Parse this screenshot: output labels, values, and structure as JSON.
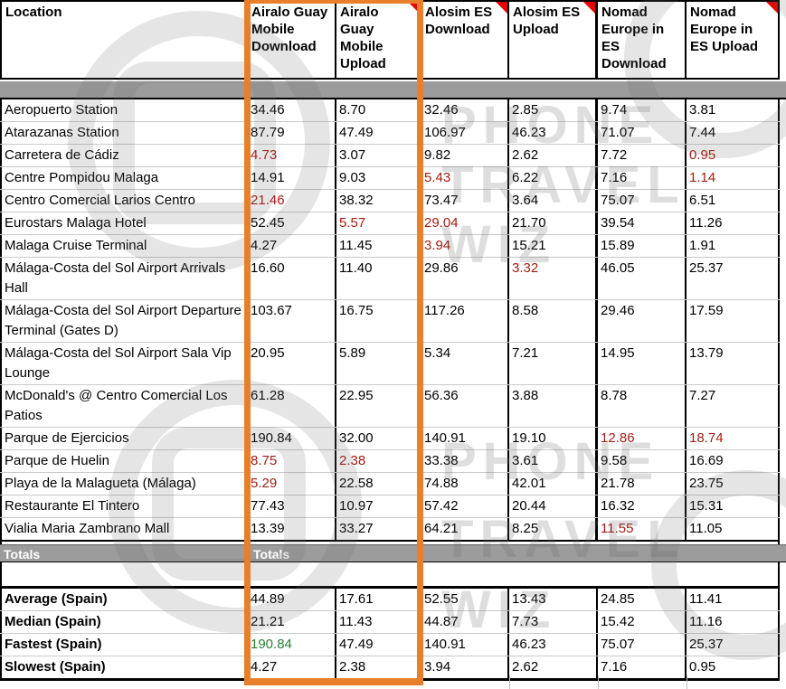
{
  "table": {
    "columns": [
      {
        "label": "Location",
        "comment": false
      },
      {
        "label": "Airalo Guay Mobile Download",
        "comment": false
      },
      {
        "label": "Airalo Guay Mobile Upload",
        "comment": true
      },
      {
        "label": "Alosim ES Download",
        "comment": true
      },
      {
        "label": "Alosim ES Upload",
        "comment": true
      },
      {
        "label": "Nomad Europe in ES Download",
        "comment": false
      },
      {
        "label": "Nomad Europe in ES Upload",
        "comment": true
      }
    ],
    "rows": [
      {
        "location": "Aeropuerto Station",
        "tall": false,
        "cells": [
          {
            "v": "34.46",
            "s": "g"
          },
          {
            "v": "8.70",
            "s": "g"
          },
          {
            "v": "32.46",
            "s": ""
          },
          {
            "v": "2.85",
            "s": ""
          },
          {
            "v": "9.74",
            "s": ""
          },
          {
            "v": "3.81",
            "s": ""
          }
        ]
      },
      {
        "location": "Atarazanas Station",
        "tall": false,
        "cells": [
          {
            "v": "87.79",
            "s": ""
          },
          {
            "v": "47.49",
            "s": ""
          },
          {
            "v": "106.97",
            "s": ""
          },
          {
            "v": "46.23",
            "s": ""
          },
          {
            "v": "71.07",
            "s": ""
          },
          {
            "v": "7.44",
            "s": ""
          }
        ]
      },
      {
        "location": "Carretera de Cádiz",
        "tall": false,
        "cells": [
          {
            "v": "4.73",
            "s": "p"
          },
          {
            "v": "3.07",
            "s": ""
          },
          {
            "v": "9.82",
            "s": ""
          },
          {
            "v": "2.62",
            "s": ""
          },
          {
            "v": "7.72",
            "s": ""
          },
          {
            "v": "0.95",
            "s": "p"
          }
        ]
      },
      {
        "location": "Centre Pompidou Malaga",
        "tall": false,
        "cells": [
          {
            "v": "14.91",
            "s": ""
          },
          {
            "v": "9.03",
            "s": ""
          },
          {
            "v": "5.43",
            "s": "p"
          },
          {
            "v": "6.22",
            "s": ""
          },
          {
            "v": "7.16",
            "s": ""
          },
          {
            "v": "1.14",
            "s": "p"
          }
        ]
      },
      {
        "location": "Centro Comercial Larios Centro",
        "tall": false,
        "cells": [
          {
            "v": "21.46",
            "s": "p"
          },
          {
            "v": "38.32",
            "s": ""
          },
          {
            "v": "73.47",
            "s": ""
          },
          {
            "v": "3.64",
            "s": ""
          },
          {
            "v": "75.07",
            "s": ""
          },
          {
            "v": "6.51",
            "s": ""
          }
        ]
      },
      {
        "location": "Eurostars Malaga Hotel",
        "tall": false,
        "cells": [
          {
            "v": "52.45",
            "s": ""
          },
          {
            "v": "5.57",
            "s": "p"
          },
          {
            "v": "29.04",
            "s": "p"
          },
          {
            "v": "21.70",
            "s": ""
          },
          {
            "v": "39.54",
            "s": ""
          },
          {
            "v": "11.26",
            "s": ""
          }
        ]
      },
      {
        "location": "Malaga Cruise Terminal",
        "tall": false,
        "cells": [
          {
            "v": "4.27",
            "s": ""
          },
          {
            "v": "11.45",
            "s": ""
          },
          {
            "v": "3.94",
            "s": "p"
          },
          {
            "v": "15.21",
            "s": "g"
          },
          {
            "v": "15.89",
            "s": "g"
          },
          {
            "v": "1.91",
            "s": ""
          }
        ]
      },
      {
        "location": "Málaga-Costa del Sol Airport Arrivals Hall",
        "tall": true,
        "cells": [
          {
            "v": "16.60",
            "s": ""
          },
          {
            "v": "11.40",
            "s": ""
          },
          {
            "v": "29.86",
            "s": ""
          },
          {
            "v": "3.32",
            "s": "p"
          },
          {
            "v": "46.05",
            "s": "g"
          },
          {
            "v": "25.37",
            "s": "g"
          }
        ]
      },
      {
        "location": "Málaga-Costa del Sol Airport Departure Terminal (Gates D)",
        "tall": true,
        "cells": [
          {
            "v": "103.67",
            "s": ""
          },
          {
            "v": "16.75",
            "s": ""
          },
          {
            "v": "117.26",
            "s": ""
          },
          {
            "v": "8.58",
            "s": ""
          },
          {
            "v": "29.46",
            "s": ""
          },
          {
            "v": "17.59",
            "s": "g"
          }
        ]
      },
      {
        "location": "Málaga-Costa del Sol Airport Sala Vip Lounge",
        "tall": true,
        "cells": [
          {
            "v": "20.95",
            "s": ""
          },
          {
            "v": "5.89",
            "s": ""
          },
          {
            "v": "5.34",
            "s": ""
          },
          {
            "v": "7.21",
            "s": ""
          },
          {
            "v": "14.95",
            "s": ""
          },
          {
            "v": "13.79",
            "s": ""
          }
        ]
      },
      {
        "location": "McDonald's @ Centro Comercial Los Patios",
        "tall": true,
        "cells": [
          {
            "v": "61.28",
            "s": ""
          },
          {
            "v": "22.95",
            "s": "g"
          },
          {
            "v": "56.36",
            "s": ""
          },
          {
            "v": "3.88",
            "s": ""
          },
          {
            "v": "8.78",
            "s": ""
          },
          {
            "v": "7.27",
            "s": ""
          }
        ]
      },
      {
        "location": "Parque de Ejercicios",
        "tall": false,
        "cells": [
          {
            "v": "190.84",
            "s": "g"
          },
          {
            "v": "32.00",
            "s": "g"
          },
          {
            "v": "140.91",
            "s": ""
          },
          {
            "v": "19.10",
            "s": ""
          },
          {
            "v": "12.86",
            "s": "p"
          },
          {
            "v": "18.74",
            "s": "p"
          }
        ]
      },
      {
        "location": "Parque de Huelin",
        "tall": false,
        "cells": [
          {
            "v": "8.75",
            "s": "p"
          },
          {
            "v": "2.38",
            "s": "p"
          },
          {
            "v": "33.38",
            "s": ""
          },
          {
            "v": "3.61",
            "s": ""
          },
          {
            "v": "9.58",
            "s": ""
          },
          {
            "v": "16.69",
            "s": ""
          }
        ]
      },
      {
        "location": "Playa de la Malagueta (Málaga)",
        "tall": false,
        "cells": [
          {
            "v": "5.29",
            "s": "p"
          },
          {
            "v": "22.58",
            "s": ""
          },
          {
            "v": "74.88",
            "s": ""
          },
          {
            "v": "42.01",
            "s": ""
          },
          {
            "v": "21.78",
            "s": ""
          },
          {
            "v": "23.75",
            "s": ""
          }
        ]
      },
      {
        "location": "Restaurante El Tintero",
        "tall": false,
        "cells": [
          {
            "v": "77.43",
            "s": "g"
          },
          {
            "v": "10.97",
            "s": ""
          },
          {
            "v": "57.42",
            "s": ""
          },
          {
            "v": "20.44",
            "s": "g"
          },
          {
            "v": "16.32",
            "s": ""
          },
          {
            "v": "15.31",
            "s": ""
          }
        ]
      },
      {
        "location": "Vialia Maria Zambrano Mall",
        "tall": false,
        "cells": [
          {
            "v": "13.39",
            "s": ""
          },
          {
            "v": "33.27",
            "s": "g"
          },
          {
            "v": "64.21",
            "s": ""
          },
          {
            "v": "8.25",
            "s": ""
          },
          {
            "v": "11.55",
            "s": "p"
          },
          {
            "v": "11.05",
            "s": ""
          }
        ]
      }
    ],
    "totals_label": "Totals",
    "stats": [
      {
        "label": "Average (Spain)",
        "cells": [
          {
            "v": "44.89",
            "s": ""
          },
          {
            "v": "17.61",
            "s": ""
          },
          {
            "v": "52.55",
            "s": ""
          },
          {
            "v": "13.43",
            "s": ""
          },
          {
            "v": "24.85",
            "s": ""
          },
          {
            "v": "11.41",
            "s": ""
          }
        ]
      },
      {
        "label": "Median (Spain)",
        "cells": [
          {
            "v": "21.21",
            "s": ""
          },
          {
            "v": "11.43",
            "s": ""
          },
          {
            "v": "44.87",
            "s": ""
          },
          {
            "v": "7.73",
            "s": ""
          },
          {
            "v": "15.42",
            "s": ""
          },
          {
            "v": "11.16",
            "s": ""
          }
        ]
      },
      {
        "label": "Fastest (Spain)",
        "cells": [
          {
            "v": "190.84",
            "s": "gt"
          },
          {
            "v": "47.49",
            "s": ""
          },
          {
            "v": "140.91",
            "s": ""
          },
          {
            "v": "46.23",
            "s": ""
          },
          {
            "v": "75.07",
            "s": ""
          },
          {
            "v": "25.37",
            "s": ""
          }
        ]
      },
      {
        "label": "Slowest (Spain)",
        "cells": [
          {
            "v": "4.27",
            "s": ""
          },
          {
            "v": "2.38",
            "s": ""
          },
          {
            "v": "3.94",
            "s": ""
          },
          {
            "v": "2.62",
            "s": ""
          },
          {
            "v": "7.16",
            "s": ""
          },
          {
            "v": "0.95",
            "s": ""
          }
        ]
      }
    ]
  },
  "watermark": {
    "lines": [
      "PHONE",
      "TRAVEL",
      "WIZ"
    ]
  },
  "colors": {
    "green_bg": "#cbe0bf",
    "pink_bg": "#f8c7cb",
    "red_text": "#a11d12",
    "green_text": "#2e7d32",
    "band_gray": "#9c9c9c",
    "highlight_orange": "#e87f2a",
    "comment_red": "#e60000"
  }
}
